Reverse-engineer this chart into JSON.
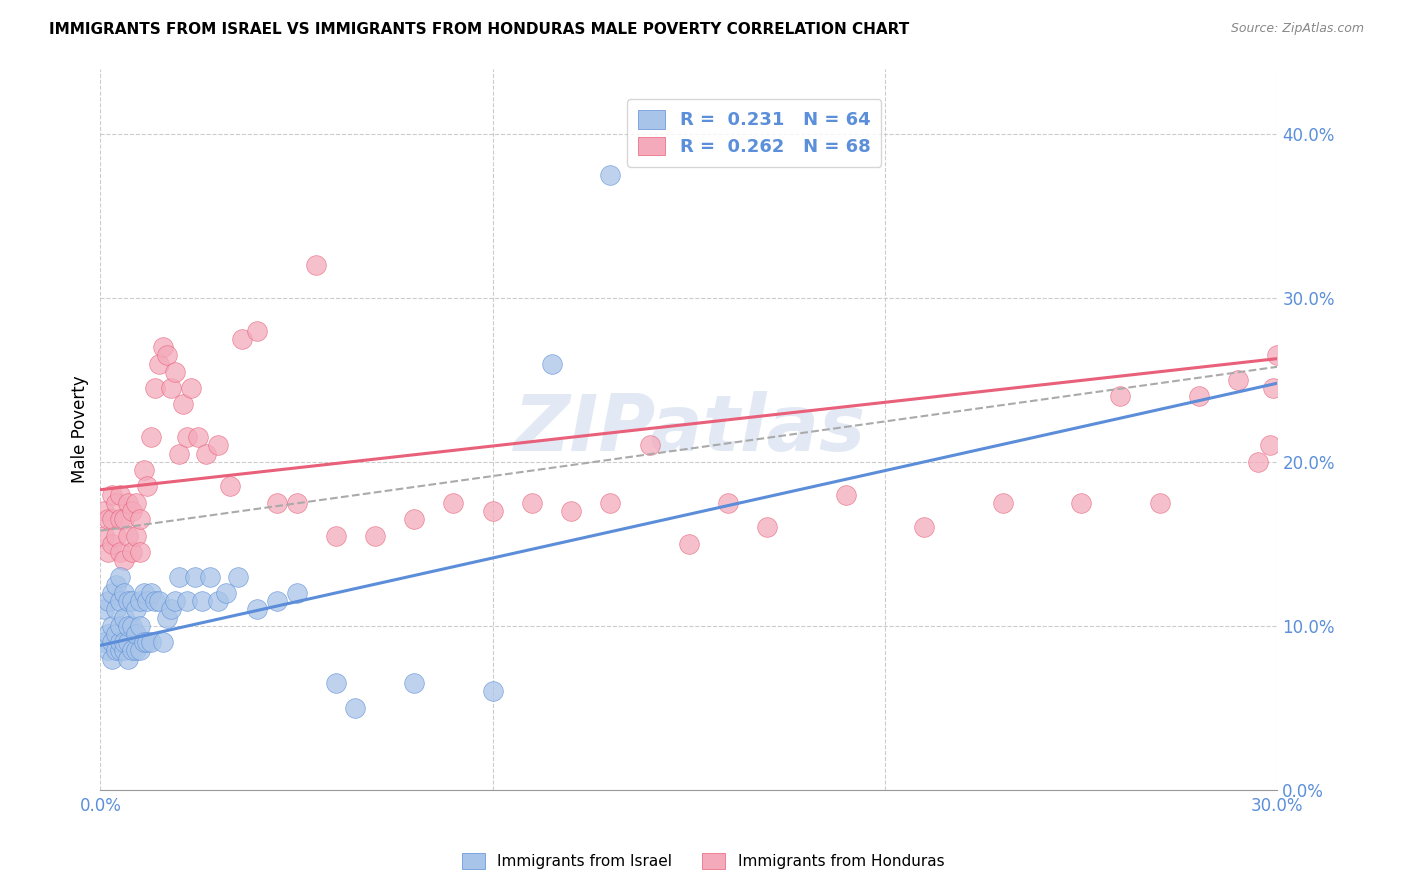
{
  "title": "IMMIGRANTS FROM ISRAEL VS IMMIGRANTS FROM HONDURAS MALE POVERTY CORRELATION CHART",
  "source": "Source: ZipAtlas.com",
  "ylabel": "Male Poverty",
  "ylabel_right_ticks": [
    "0.0%",
    "10.0%",
    "20.0%",
    "30.0%",
    "40.0%"
  ],
  "ylabel_right_vals": [
    0.0,
    0.1,
    0.2,
    0.3,
    0.4
  ],
  "xlim": [
    0.0,
    0.3
  ],
  "ylim": [
    0.0,
    0.44
  ],
  "legend_R1": "0.231",
  "legend_N1": "64",
  "legend_R2": "0.262",
  "legend_N2": "68",
  "color_israel": "#a8c4e8",
  "color_israel_dark": "#5b8dd9",
  "color_honduras": "#f4aabb",
  "color_honduras_dark": "#e8607a",
  "color_dashed_line": "#aaaaaa",
  "watermark": "ZIPatlas",
  "israel_x": [
    0.001,
    0.001,
    0.002,
    0.002,
    0.002,
    0.003,
    0.003,
    0.003,
    0.003,
    0.004,
    0.004,
    0.004,
    0.004,
    0.005,
    0.005,
    0.005,
    0.005,
    0.005,
    0.006,
    0.006,
    0.006,
    0.006,
    0.007,
    0.007,
    0.007,
    0.007,
    0.008,
    0.008,
    0.008,
    0.009,
    0.009,
    0.009,
    0.01,
    0.01,
    0.01,
    0.011,
    0.011,
    0.012,
    0.012,
    0.013,
    0.013,
    0.014,
    0.015,
    0.016,
    0.017,
    0.018,
    0.019,
    0.02,
    0.022,
    0.024,
    0.026,
    0.028,
    0.03,
    0.032,
    0.035,
    0.04,
    0.045,
    0.05,
    0.06,
    0.065,
    0.08,
    0.1,
    0.115,
    0.13
  ],
  "israel_y": [
    0.09,
    0.11,
    0.085,
    0.095,
    0.115,
    0.08,
    0.09,
    0.1,
    0.12,
    0.085,
    0.095,
    0.11,
    0.125,
    0.085,
    0.09,
    0.1,
    0.115,
    0.13,
    0.085,
    0.09,
    0.105,
    0.12,
    0.08,
    0.09,
    0.1,
    0.115,
    0.085,
    0.1,
    0.115,
    0.085,
    0.095,
    0.11,
    0.085,
    0.1,
    0.115,
    0.09,
    0.12,
    0.09,
    0.115,
    0.09,
    0.12,
    0.115,
    0.115,
    0.09,
    0.105,
    0.11,
    0.115,
    0.13,
    0.115,
    0.13,
    0.115,
    0.13,
    0.115,
    0.12,
    0.13,
    0.11,
    0.115,
    0.12,
    0.065,
    0.05,
    0.065,
    0.06,
    0.26,
    0.375
  ],
  "honduras_x": [
    0.001,
    0.001,
    0.002,
    0.002,
    0.003,
    0.003,
    0.003,
    0.004,
    0.004,
    0.005,
    0.005,
    0.005,
    0.006,
    0.006,
    0.007,
    0.007,
    0.008,
    0.008,
    0.009,
    0.009,
    0.01,
    0.01,
    0.011,
    0.012,
    0.013,
    0.014,
    0.015,
    0.016,
    0.017,
    0.018,
    0.019,
    0.02,
    0.021,
    0.022,
    0.023,
    0.025,
    0.027,
    0.03,
    0.033,
    0.036,
    0.04,
    0.045,
    0.05,
    0.055,
    0.06,
    0.07,
    0.08,
    0.09,
    0.1,
    0.11,
    0.12,
    0.13,
    0.14,
    0.15,
    0.16,
    0.17,
    0.19,
    0.21,
    0.23,
    0.25,
    0.26,
    0.27,
    0.28,
    0.29,
    0.295,
    0.298,
    0.299,
    0.3
  ],
  "honduras_y": [
    0.155,
    0.17,
    0.145,
    0.165,
    0.15,
    0.165,
    0.18,
    0.155,
    0.175,
    0.145,
    0.165,
    0.18,
    0.14,
    0.165,
    0.155,
    0.175,
    0.145,
    0.17,
    0.155,
    0.175,
    0.145,
    0.165,
    0.195,
    0.185,
    0.215,
    0.245,
    0.26,
    0.27,
    0.265,
    0.245,
    0.255,
    0.205,
    0.235,
    0.215,
    0.245,
    0.215,
    0.205,
    0.21,
    0.185,
    0.275,
    0.28,
    0.175,
    0.175,
    0.32,
    0.155,
    0.155,
    0.165,
    0.175,
    0.17,
    0.175,
    0.17,
    0.175,
    0.21,
    0.15,
    0.175,
    0.16,
    0.18,
    0.16,
    0.175,
    0.175,
    0.24,
    0.175,
    0.24,
    0.25,
    0.2,
    0.21,
    0.245,
    0.265
  ],
  "israel_line_x0": 0.0,
  "israel_line_y0": 0.088,
  "israel_line_x1": 0.3,
  "israel_line_y1": 0.248,
  "honduras_line_x0": 0.0,
  "honduras_line_y0": 0.183,
  "honduras_line_x1": 0.3,
  "honduras_line_y1": 0.263,
  "dash_line_x0": 0.0,
  "dash_line_y0": 0.158,
  "dash_line_x1": 0.3,
  "dash_line_y1": 0.258
}
